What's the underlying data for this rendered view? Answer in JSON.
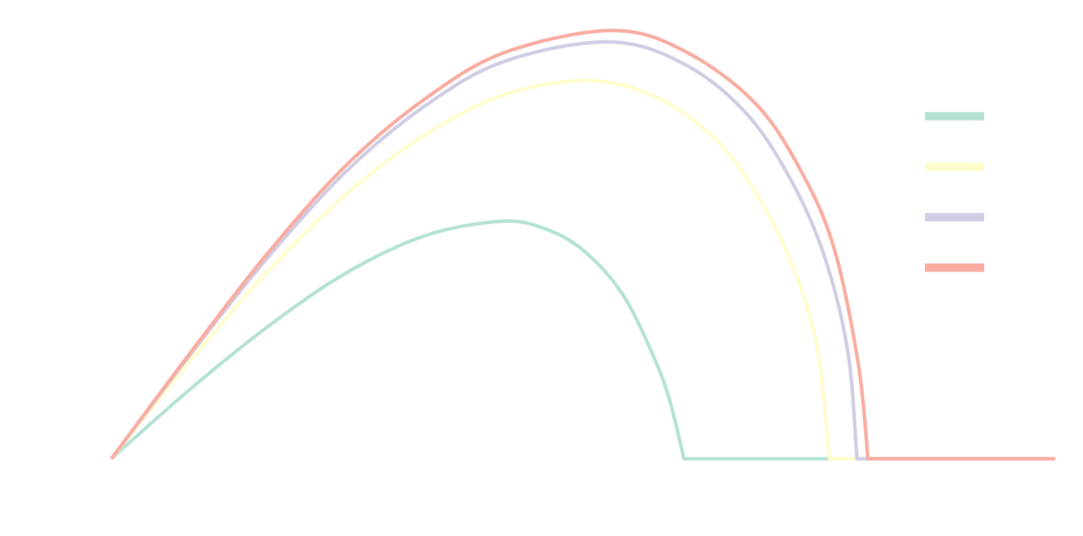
{
  "chart_data": {
    "type": "line",
    "title": "",
    "xlabel": "",
    "ylabel": "",
    "xlim": [
      0,
      1.2
    ],
    "ylim": [
      0,
      0.49
    ],
    "grid": false,
    "axes_visible": false,
    "legend": {
      "placement": "right",
      "labels_visible": false
    },
    "series": [
      {
        "color": "#b3e2d5",
        "peak": [
          0.496,
          0.27
        ],
        "landing_x": 0.728,
        "x": [
          0.0,
          0.1,
          0.2,
          0.3,
          0.4,
          0.496,
          0.55,
          0.6,
          0.65,
          0.69,
          0.71,
          0.728,
          0.8,
          0.9,
          1.0,
          1.1,
          1.2
        ],
        "y": [
          0.0,
          0.079,
          0.151,
          0.212,
          0.254,
          0.27,
          0.262,
          0.237,
          0.187,
          0.115,
          0.066,
          0.0,
          0.0,
          0.0,
          0.0,
          0.0,
          0.0
        ]
      },
      {
        "color": "#fffdcc",
        "peak": [
          0.609,
          0.43
        ],
        "landing_x": 0.913,
        "x": [
          0.0,
          0.1,
          0.2,
          0.3,
          0.4,
          0.5,
          0.609,
          0.7,
          0.78,
          0.84,
          0.88,
          0.9,
          0.913,
          1.0,
          1.1,
          1.2
        ],
        "y": [
          0.0,
          0.111,
          0.214,
          0.302,
          0.369,
          0.414,
          0.43,
          0.408,
          0.352,
          0.27,
          0.186,
          0.112,
          0.0,
          0.0,
          0.0,
          0.0
        ]
      },
      {
        "color": "#cfcce3",
        "peak": [
          0.634,
          0.474
        ],
        "landing_x": 0.948,
        "x": [
          0.0,
          0.1,
          0.2,
          0.3,
          0.4,
          0.5,
          0.634,
          0.73,
          0.81,
          0.87,
          0.91,
          0.937,
          0.948,
          1.0,
          1.1,
          1.2
        ],
        "y": [
          0.0,
          0.118,
          0.23,
          0.328,
          0.402,
          0.452,
          0.474,
          0.448,
          0.39,
          0.307,
          0.221,
          0.118,
          0.0,
          0.0,
          0.0,
          0.0
        ]
      },
      {
        "color": "#f9ab9f",
        "peak": [
          0.637,
          0.487
        ],
        "landing_x": 0.962,
        "x": [
          0.0,
          0.1,
          0.2,
          0.3,
          0.4,
          0.5,
          0.637,
          0.73,
          0.82,
          0.88,
          0.92,
          0.95,
          0.962,
          1.0,
          1.1,
          1.2
        ],
        "y": [
          0.0,
          0.12,
          0.235,
          0.335,
          0.41,
          0.462,
          0.487,
          0.463,
          0.403,
          0.322,
          0.236,
          0.106,
          0.0,
          0.0,
          0.0,
          0.0
        ]
      }
    ]
  }
}
